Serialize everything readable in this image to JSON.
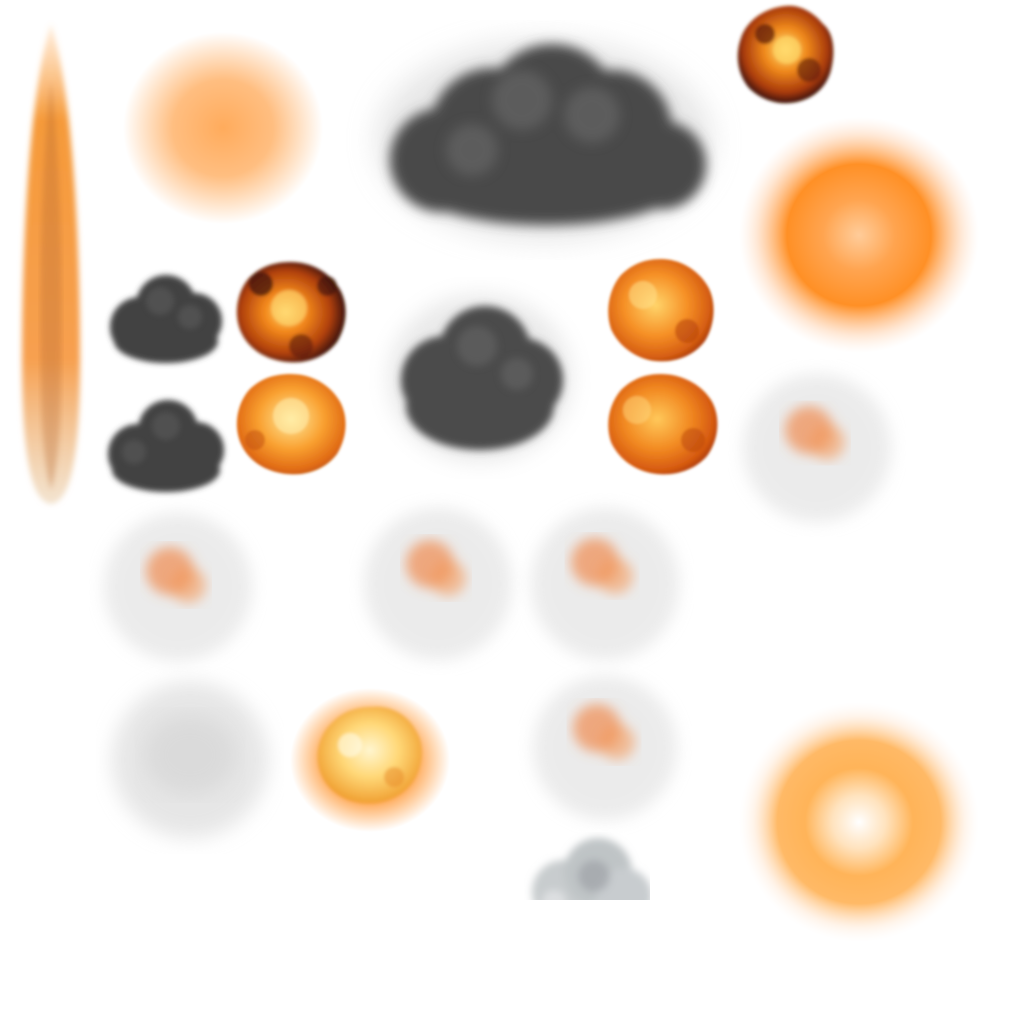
{
  "atlas": {
    "background": "#ffffff",
    "palette": {
      "fire_core": "#ffe9a8",
      "fire_mid": "#ff9a2a",
      "fire_deep": "#d94e0c",
      "char": "#3a1206",
      "glow": "#ff8a1a",
      "smoke_dark": "#444444",
      "smoke_mid": "#5a5a5a",
      "smoke_light": "#d9d9d9",
      "ember": "#f08a50"
    },
    "sprites": [
      {
        "name": "fire-streak-sprite",
        "kind": "streak"
      },
      {
        "name": "soft-glow-sprite",
        "kind": "soft-glow"
      },
      {
        "name": "large-smoke-cloud-sprite",
        "kind": "smoke-dark"
      },
      {
        "name": "small-explosion-sprite",
        "kind": "explosion-dark"
      },
      {
        "name": "glow-ring-sprite",
        "kind": "glow-ring"
      },
      {
        "name": "dark-smoke-puff-sprite",
        "kind": "smoke-dark"
      },
      {
        "name": "dark-explosion-sprite",
        "kind": "explosion-dark"
      },
      {
        "name": "medium-smoke-cloud-sprite",
        "kind": "smoke-dark"
      },
      {
        "name": "orange-explosion-sprite",
        "kind": "explosion-orange"
      },
      {
        "name": "dark-smoke-puff-sprite",
        "kind": "smoke-dark"
      },
      {
        "name": "bright-explosion-sprite",
        "kind": "explosion-bright"
      },
      {
        "name": "orange-explosion-sprite",
        "kind": "explosion-orange"
      },
      {
        "name": "faded-ember-smoke-sprite",
        "kind": "faded-ember"
      },
      {
        "name": "faded-ember-smoke-sprite",
        "kind": "faded-ember"
      },
      {
        "name": "faded-ember-smoke-sprite",
        "kind": "faded-ember"
      },
      {
        "name": "faded-ember-smoke-sprite",
        "kind": "faded-ember"
      },
      {
        "name": "faint-smoke-sprite",
        "kind": "faint-smoke"
      },
      {
        "name": "glowing-explosion-sprite",
        "kind": "explosion-glow"
      },
      {
        "name": "faded-ember-smoke-sprite",
        "kind": "faded-ember"
      },
      {
        "name": "glow-ring-sprite",
        "kind": "glow-ring-soft"
      },
      {
        "name": "gray-smoke-puff-sprite",
        "kind": "smoke-gray-cut"
      }
    ]
  }
}
